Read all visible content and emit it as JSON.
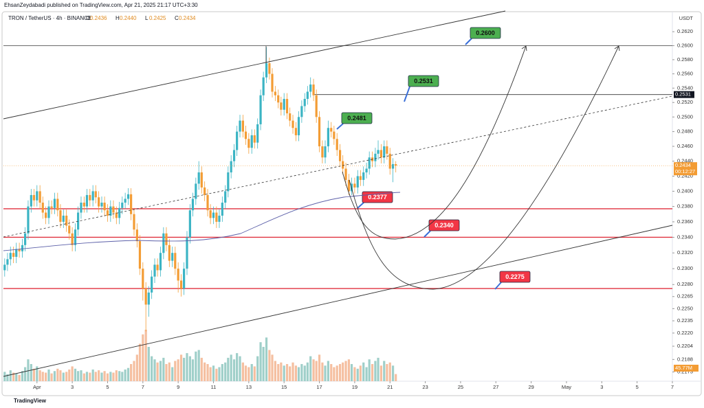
{
  "header": {
    "author_line": "EhsanZeydabadi published on TradingView.com, Apr 21, 2025 21:17 UTC+3:30",
    "brand": "TradingView"
  },
  "chart_data": {
    "type": "candlestick",
    "symbol": "TRON / TetherUS · 4h · BINANCE",
    "ohlc_labels": [
      "O",
      "H",
      "L",
      "C"
    ],
    "last_candle_labels": [
      "0.2436",
      "0.2440",
      "0.2425",
      "0.2434"
    ],
    "currency": "USDT",
    "countdown": "00:12:27",
    "log": true,
    "grid": false,
    "up_color": "#3bb4c4",
    "down_color": "#f39c34",
    "volume_up_color": "#9fcfc9",
    "volume_down_color": "#f5bfa0",
    "x": [
      -0.83,
      -0.67,
      -0.5,
      -0.33,
      -0.17,
      0,
      0.17,
      0.33,
      0.5,
      0.67,
      0.83,
      1,
      1.17,
      1.33,
      1.5,
      1.67,
      1.83,
      2,
      2.17,
      2.33,
      2.5,
      2.67,
      2.83,
      3,
      3.17,
      3.33,
      3.5,
      3.67,
      3.83,
      4,
      4.17,
      4.33,
      4.5,
      4.67,
      4.83,
      5,
      5.17,
      5.33,
      5.5,
      5.67,
      5.83,
      6,
      6.17,
      6.33,
      6.5,
      6.67,
      6.83,
      7,
      7.17,
      7.33,
      7.5,
      7.67,
      7.83,
      8,
      8.17,
      8.33,
      8.5,
      8.67,
      8.83,
      9,
      9.17,
      9.33,
      9.5,
      9.67,
      9.83,
      10,
      10.17,
      10.33,
      10.5,
      10.67,
      10.83,
      11,
      11.17,
      11.33,
      11.5,
      11.67,
      11.83,
      12,
      12.17,
      12.33,
      12.5,
      12.67,
      12.83,
      13,
      13.17,
      13.33,
      13.5,
      13.67,
      13.83,
      14,
      14.17,
      14.33,
      14.5,
      14.67,
      14.83,
      15,
      15.17,
      15.33,
      15.5,
      15.67,
      15.83,
      16,
      16.17,
      16.33,
      16.5,
      16.67,
      16.83,
      17,
      17.17,
      17.33,
      17.5,
      17.67,
      17.83,
      18,
      18.17,
      18.33,
      18.5,
      18.67,
      18.83,
      19,
      19.17,
      19.33,
      19.5,
      19.67,
      19.83,
      20,
      20.17,
      20.33,
      20.5,
      20.67,
      20.83,
      21,
      21.17,
      21.33
    ],
    "open": [
      0.2298,
      0.2305,
      0.2312,
      0.232,
      0.2315,
      0.2325,
      0.2322,
      0.233,
      0.2345,
      0.238,
      0.2395,
      0.2388,
      0.24,
      0.2385,
      0.2372,
      0.2365,
      0.238,
      0.2378,
      0.239,
      0.2375,
      0.236,
      0.2368,
      0.2355,
      0.2345,
      0.233,
      0.235,
      0.2372,
      0.2385,
      0.238,
      0.2395,
      0.2388,
      0.24,
      0.2392,
      0.238,
      0.2385,
      0.2375,
      0.2368,
      0.238,
      0.2372,
      0.2365,
      0.2378,
      0.2385,
      0.239,
      0.2396,
      0.237,
      0.235,
      0.2335,
      0.23,
      0.2275,
      0.2255,
      0.227,
      0.229,
      0.2305,
      0.2298,
      0.232,
      0.2345,
      0.233,
      0.231,
      0.232,
      0.23,
      0.2285,
      0.2275,
      0.23,
      0.234,
      0.2375,
      0.239,
      0.241,
      0.2425,
      0.2405,
      0.2395,
      0.2375,
      0.2365,
      0.2372,
      0.236,
      0.2368,
      0.2385,
      0.24,
      0.2425,
      0.244,
      0.2455,
      0.248,
      0.2495,
      0.248,
      0.247,
      0.2458,
      0.2475,
      0.2465,
      0.249,
      0.253,
      0.2555,
      0.2575,
      0.256,
      0.2535,
      0.253,
      0.252,
      0.251,
      0.2525,
      0.2505,
      0.2495,
      0.2485,
      0.2475,
      0.25,
      0.2515,
      0.2525,
      0.2535,
      0.2545,
      0.253,
      0.25,
      0.246,
      0.2445,
      0.246,
      0.2485,
      0.248,
      0.247,
      0.2455,
      0.244,
      0.243,
      0.2415,
      0.24,
      0.241,
      0.2405,
      0.242,
      0.2415,
      0.2425,
      0.243,
      0.2445,
      0.244,
      0.245,
      0.2455,
      0.2445,
      0.246,
      0.245,
      0.243,
      0.2436
    ],
    "high": [
      0.2313,
      0.232,
      0.2328,
      0.2328,
      0.2333,
      0.2333,
      0.2338,
      0.2353,
      0.2388,
      0.2403,
      0.2403,
      0.2408,
      0.2408,
      0.2393,
      0.238,
      0.2388,
      0.2388,
      0.2398,
      0.2398,
      0.2383,
      0.2376,
      0.2376,
      0.2363,
      0.2353,
      0.2358,
      0.238,
      0.2393,
      0.2393,
      0.2403,
      0.2403,
      0.2408,
      0.2408,
      0.24,
      0.2393,
      0.2393,
      0.2383,
      0.2388,
      0.2388,
      0.238,
      0.2386,
      0.2393,
      0.2398,
      0.2404,
      0.2404,
      0.2378,
      0.2358,
      0.2343,
      0.2308,
      0.2283,
      0.2278,
      0.2298,
      0.2313,
      0.2313,
      0.2328,
      0.2353,
      0.2353,
      0.2338,
      0.2328,
      0.2328,
      0.2308,
      0.2293,
      0.2308,
      0.2348,
      0.2383,
      0.2398,
      0.2418,
      0.244,
      0.2433,
      0.2413,
      0.2403,
      0.2383,
      0.238,
      0.238,
      0.2376,
      0.2393,
      0.2408,
      0.2433,
      0.2448,
      0.2463,
      0.2488,
      0.2503,
      0.2503,
      0.2488,
      0.2478,
      0.2483,
      0.2483,
      0.2498,
      0.2538,
      0.2563,
      0.2598,
      0.2583,
      0.2568,
      0.2543,
      0.2538,
      0.2528,
      0.2533,
      0.2533,
      0.2513,
      0.2503,
      0.2493,
      0.2508,
      0.2523,
      0.2533,
      0.2543,
      0.2555,
      0.2553,
      0.2538,
      0.2508,
      0.2468,
      0.2468,
      0.2495,
      0.2493,
      0.2488,
      0.2478,
      0.2463,
      0.2448,
      0.2438,
      0.2423,
      0.2418,
      0.2418,
      0.2428,
      0.2428,
      0.2433,
      0.2438,
      0.2453,
      0.2453,
      0.2458,
      0.2468,
      0.2463,
      0.2468,
      0.2468,
      0.2458,
      0.2444,
      0.244
    ],
    "low": [
      0.229,
      0.2297,
      0.2304,
      0.2307,
      0.2307,
      0.2314,
      0.2314,
      0.2322,
      0.2337,
      0.2372,
      0.238,
      0.238,
      0.2377,
      0.2364,
      0.2357,
      0.2357,
      0.237,
      0.237,
      0.2367,
      0.2352,
      0.2352,
      0.2347,
      0.2337,
      0.2322,
      0.2322,
      0.2342,
      0.2364,
      0.2372,
      0.2372,
      0.238,
      0.238,
      0.2384,
      0.2372,
      0.2372,
      0.2367,
      0.236,
      0.236,
      0.2364,
      0.2357,
      0.2357,
      0.237,
      0.2377,
      0.2382,
      0.2362,
      0.2342,
      0.2327,
      0.2292,
      0.226,
      0.2222,
      0.224,
      0.2262,
      0.2282,
      0.229,
      0.229,
      0.2312,
      0.2322,
      0.2302,
      0.2302,
      0.2292,
      0.227,
      0.2265,
      0.2267,
      0.2292,
      0.2332,
      0.2367,
      0.2382,
      0.2402,
      0.2397,
      0.2387,
      0.2367,
      0.2357,
      0.2357,
      0.2352,
      0.2352,
      0.236,
      0.2377,
      0.2392,
      0.2417,
      0.2432,
      0.2447,
      0.2472,
      0.2472,
      0.2462,
      0.245,
      0.245,
      0.2457,
      0.2457,
      0.2482,
      0.2522,
      0.2547,
      0.2552,
      0.2527,
      0.2522,
      0.2512,
      0.2502,
      0.2502,
      0.2497,
      0.2487,
      0.2477,
      0.2467,
      0.2467,
      0.2492,
      0.2507,
      0.2517,
      0.2527,
      0.2522,
      0.2492,
      0.2452,
      0.2437,
      0.2437,
      0.2452,
      0.2472,
      0.2462,
      0.2447,
      0.2432,
      0.2422,
      0.2407,
      0.2395,
      0.2395,
      0.2397,
      0.2397,
      0.2407,
      0.2407,
      0.2417,
      0.2422,
      0.2432,
      0.2432,
      0.2442,
      0.2437,
      0.2437,
      0.2442,
      0.2422,
      0.2412,
      0.2425
    ],
    "close": [
      0.2305,
      0.2312,
      0.232,
      0.2315,
      0.2325,
      0.2322,
      0.233,
      0.2345,
      0.238,
      0.2395,
      0.2388,
      0.24,
      0.2385,
      0.2372,
      0.2365,
      0.238,
      0.2378,
      0.239,
      0.2375,
      0.236,
      0.2368,
      0.2355,
      0.2345,
      0.233,
      0.235,
      0.2372,
      0.2385,
      0.238,
      0.2395,
      0.2388,
      0.24,
      0.2392,
      0.238,
      0.2385,
      0.2375,
      0.2368,
      0.238,
      0.2372,
      0.2365,
      0.2378,
      0.2385,
      0.239,
      0.2396,
      0.237,
      0.235,
      0.2335,
      0.23,
      0.2275,
      0.2255,
      0.227,
      0.229,
      0.2305,
      0.2298,
      0.232,
      0.2345,
      0.233,
      0.231,
      0.232,
      0.23,
      0.2285,
      0.2275,
      0.23,
      0.234,
      0.2375,
      0.239,
      0.241,
      0.2425,
      0.2405,
      0.2395,
      0.2375,
      0.2365,
      0.2372,
      0.236,
      0.2368,
      0.2385,
      0.24,
      0.2425,
      0.244,
      0.2455,
      0.248,
      0.2495,
      0.248,
      0.247,
      0.2458,
      0.2475,
      0.2465,
      0.249,
      0.253,
      0.2555,
      0.2575,
      0.256,
      0.2535,
      0.253,
      0.252,
      0.251,
      0.2525,
      0.2505,
      0.2495,
      0.2485,
      0.2475,
      0.25,
      0.2515,
      0.2525,
      0.2535,
      0.2545,
      0.253,
      0.25,
      0.246,
      0.2445,
      0.246,
      0.2485,
      0.248,
      0.247,
      0.2455,
      0.244,
      0.243,
      0.2415,
      0.24,
      0.241,
      0.2405,
      0.242,
      0.2415,
      0.2425,
      0.243,
      0.2445,
      0.244,
      0.245,
      0.2455,
      0.2445,
      0.246,
      0.245,
      0.243,
      0.2436,
      0.2434
    ],
    "volume": [
      60,
      45,
      70,
      55,
      50,
      40,
      65,
      90,
      140,
      110,
      80,
      95,
      70,
      60,
      55,
      75,
      50,
      65,
      80,
      70,
      55,
      60,
      75,
      95,
      80,
      65,
      70,
      50,
      60,
      55,
      75,
      60,
      70,
      55,
      65,
      50,
      60,
      55,
      70,
      65,
      60,
      75,
      85,
      110,
      130,
      170,
      240,
      300,
      330,
      220,
      160,
      140,
      120,
      130,
      150,
      110,
      120,
      90,
      130,
      140,
      170,
      150,
      180,
      160,
      140,
      190,
      200,
      150,
      120,
      110,
      90,
      100,
      80,
      90,
      110,
      120,
      150,
      170,
      140,
      180,
      160,
      120,
      100,
      90,
      110,
      95,
      160,
      250,
      220,
      280,
      200,
      170,
      130,
      110,
      120,
      100,
      110,
      95,
      120,
      100,
      90,
      110,
      100,
      120,
      160,
      140,
      130,
      170,
      120,
      100,
      130,
      110,
      90,
      100,
      110,
      120,
      130,
      140,
      110,
      90,
      80,
      100,
      120,
      90,
      140,
      110,
      130,
      150,
      100,
      130,
      110,
      120,
      100,
      45.77
    ],
    "volume_value_label": "45.77M",
    "xlim": [
      -0.9,
      37
    ],
    "xticks": [
      {
        "value": 1,
        "label": "Apr"
      },
      3,
      5,
      7,
      9,
      11,
      13,
      15,
      17,
      19,
      21,
      23,
      25,
      27,
      29,
      {
        "value": 31,
        "label": "May"
      },
      {
        "value": 33,
        "label": "3"
      },
      {
        "value": 35,
        "label": "5"
      },
      {
        "value": 37,
        "label": "7"
      }
    ],
    "ylim": [
      0.2162,
      0.2651
    ],
    "yticks": [
      {
        "value": 0.262,
        "label": "0.2620"
      },
      {
        "value": 0.26,
        "label": "0.2600"
      },
      {
        "value": 0.258,
        "label": "0.2580"
      },
      {
        "value": 0.256,
        "label": "0.2560"
      },
      {
        "value": 0.254,
        "label": "0.2540"
      },
      {
        "value": 0.252,
        "label": "0.2520"
      },
      {
        "value": 0.25,
        "label": "0.2500"
      },
      {
        "value": 0.248,
        "label": "0.2480"
      },
      {
        "value": 0.246,
        "label": "0.2460"
      },
      {
        "value": 0.244,
        "label": "0.2440"
      },
      {
        "value": 0.242,
        "label": "0.2420"
      },
      {
        "value": 0.24,
        "label": "0.2400"
      },
      {
        "value": 0.238,
        "label": "0.2380"
      },
      {
        "value": 0.236,
        "label": "0.2360"
      },
      {
        "value": 0.234,
        "label": "0.2340"
      },
      {
        "value": 0.232,
        "label": "0.2320"
      },
      {
        "value": 0.23,
        "label": "0.2300"
      },
      {
        "value": 0.228,
        "label": "0.2280"
      },
      0.2265,
      {
        "value": 0.225,
        "label": "0.2250"
      },
      0.2235,
      {
        "value": 0.222,
        "label": "0.2220"
      },
      0.2204,
      0.2188,
      0.2173
    ],
    "hlines": [
      {
        "value": 0.26,
        "color": "#555555"
      },
      {
        "value": 0.2531,
        "color": "#333333"
      },
      {
        "value": 0.2377,
        "color": "#e0313e"
      },
      {
        "value": 0.234,
        "color": "#e0313e"
      },
      {
        "value": 0.2275,
        "color": "#e0313e"
      }
    ],
    "annotations": [
      {
        "text": "0.2600",
        "color": "#4caf50"
      },
      {
        "text": "0.2531",
        "color": "#4caf50"
      },
      {
        "text": "0.2481",
        "color": "#4caf50"
      },
      {
        "text": "0.2377",
        "color": "#f23645"
      },
      {
        "text": "0.2340",
        "color": "#f23645"
      },
      {
        "text": "0.2275",
        "color": "#f23645"
      }
    ]
  }
}
